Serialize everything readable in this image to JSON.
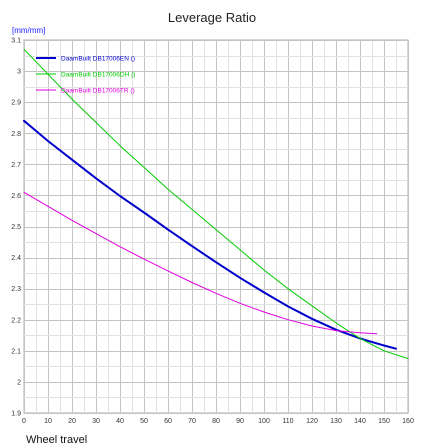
{
  "chart_data": {
    "type": "line",
    "title": "Leverage Ratio",
    "ylabel": "[mm/mm]",
    "xlabel": "Wheel travel",
    "xlim": [
      0,
      160
    ],
    "ylim": [
      1.9,
      3.1
    ],
    "x_ticks": [
      0,
      10,
      20,
      30,
      40,
      50,
      60,
      70,
      80,
      90,
      100,
      110,
      120,
      130,
      140,
      150,
      160
    ],
    "x_tick_labels": [
      "0",
      "10",
      "20",
      "30",
      "40",
      "50",
      "60",
      "70",
      "80",
      "90",
      "100",
      "110",
      "120",
      "130",
      "140",
      "150",
      "160"
    ],
    "y_ticks": [
      1.9,
      2.0,
      2.1,
      2.2,
      2.3,
      2.4,
      2.5,
      2.6,
      2.7,
      2.8,
      2.9,
      3.0,
      3.1
    ],
    "y_tick_labels": [
      "1.9",
      "2",
      "2.1",
      "2.2",
      "2.3",
      "2.4",
      "2.5",
      "2.6",
      "2.7",
      "2.8",
      "2.9",
      "3",
      "3.1"
    ],
    "grid": true,
    "legend_position": "top-left",
    "series": [
      {
        "name": "DaamBuilt DB17006EN ()",
        "color": "#0000cc",
        "width": 2,
        "x": [
          0,
          10,
          20,
          30,
          40,
          50,
          60,
          70,
          80,
          90,
          100,
          110,
          120,
          130,
          140,
          150,
          155
        ],
        "y": [
          2.84,
          2.775,
          2.715,
          2.655,
          2.598,
          2.545,
          2.49,
          2.437,
          2.385,
          2.335,
          2.288,
          2.243,
          2.203,
          2.168,
          2.14,
          2.117,
          2.107
        ]
      },
      {
        "name": "DaamBuilt DB17006DH ()",
        "color": "#00cc00",
        "width": 1,
        "x": [
          0,
          10,
          20,
          30,
          40,
          50,
          60,
          70,
          80,
          90,
          100,
          110,
          120,
          130,
          140,
          150,
          160
        ],
        "y": [
          3.07,
          2.99,
          2.91,
          2.835,
          2.76,
          2.69,
          2.62,
          2.555,
          2.49,
          2.425,
          2.36,
          2.3,
          2.245,
          2.19,
          2.14,
          2.1,
          2.075
        ]
      },
      {
        "name": "DaamBuilt DB17006TR ()",
        "color": "#e000e0",
        "width": 1,
        "x": [
          0,
          10,
          20,
          30,
          40,
          50,
          60,
          70,
          80,
          90,
          100,
          110,
          120,
          130,
          140,
          147
        ],
        "y": [
          2.61,
          2.565,
          2.52,
          2.477,
          2.435,
          2.395,
          2.357,
          2.32,
          2.285,
          2.253,
          2.225,
          2.2,
          2.18,
          2.165,
          2.158,
          2.155
        ]
      }
    ]
  }
}
